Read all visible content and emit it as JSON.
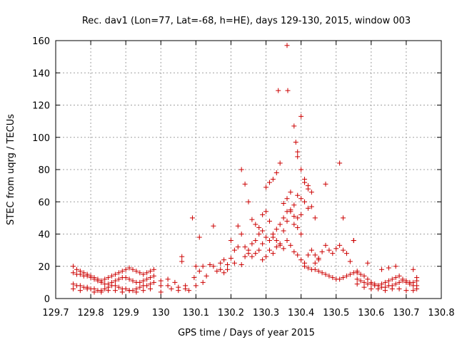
{
  "chart_data": {
    "type": "scatter",
    "title": "Rec. dav1 (Lon=77, Lat=-68, h=HE), days 129-130, 2015, window 003",
    "xlabel": "GPS time / Days of year 2015",
    "ylabel": "STEC from uqrg / TECUs",
    "xlim": [
      129.7,
      130.8
    ],
    "ylim": [
      0,
      160
    ],
    "xticks": [
      129.7,
      129.8,
      129.9,
      130.0,
      130.1,
      130.2,
      130.3,
      130.4,
      130.5,
      130.6,
      130.7,
      130.8
    ],
    "xtick_labels": [
      "129.7",
      "129.8",
      "129.9",
      "130",
      "130.1",
      "130.2",
      "130.3",
      "130.4",
      "130.5",
      "130.6",
      "130.7",
      "130.8"
    ],
    "yticks": [
      0,
      20,
      40,
      60,
      80,
      100,
      120,
      140,
      160
    ],
    "ytick_labels": [
      "0",
      "20",
      "40",
      "60",
      "80",
      "100",
      "120",
      "140",
      "160"
    ],
    "grid": true,
    "marker": "plus",
    "color": "#cc0000",
    "series": [
      {
        "x": [
          129.75,
          129.76,
          129.77,
          129.78,
          129.79,
          129.8,
          129.81,
          129.82,
          129.83,
          129.84,
          129.85,
          129.86,
          129.87,
          129.88,
          129.89,
          129.9,
          129.91,
          129.92,
          129.93,
          129.94,
          129.95,
          129.96,
          129.97,
          129.98,
          129.75,
          129.76,
          129.77,
          129.78,
          129.79,
          129.8,
          129.81,
          129.82,
          129.83,
          129.84,
          129.85,
          129.86,
          129.87,
          129.88,
          129.89,
          129.9,
          129.91,
          129.92,
          129.93,
          129.94,
          129.95,
          129.96,
          129.97,
          129.98,
          129.75,
          129.76,
          129.77,
          129.78,
          129.79,
          129.8,
          129.81,
          129.82,
          129.83,
          129.84,
          129.85,
          129.86,
          129.87,
          129.88,
          129.89,
          129.9,
          129.91,
          129.92,
          129.93,
          129.94,
          129.95,
          129.96,
          129.97,
          129.98,
          129.75,
          129.77,
          129.79,
          129.81,
          129.83,
          129.85,
          129.87,
          129.89,
          129.91,
          129.93,
          129.95,
          129.97,
          130.0,
          130.0,
          130.0,
          130.02,
          130.02,
          130.03,
          130.04,
          130.05,
          130.05,
          130.06,
          130.06,
          130.07,
          130.07,
          130.08,
          130.09,
          130.095,
          130.1,
          130.1,
          130.11,
          130.11,
          130.12,
          130.12,
          130.13,
          130.14,
          130.15,
          130.15,
          130.16,
          130.17,
          130.17,
          130.18,
          130.18,
          130.19,
          130.19,
          130.2,
          130.2,
          130.21,
          130.21,
          130.22,
          130.22,
          130.23,
          130.23,
          130.24,
          130.24,
          130.25,
          130.25,
          130.26,
          130.26,
          130.27,
          130.27,
          130.28,
          130.28,
          130.29,
          130.29,
          130.23,
          130.24,
          130.25,
          130.26,
          130.27,
          130.28,
          130.29,
          130.29,
          130.3,
          130.3,
          130.31,
          130.31,
          130.32,
          130.32,
          130.33,
          130.33,
          130.34,
          130.34,
          130.35,
          130.35,
          130.36,
          130.36,
          130.37,
          130.37,
          130.38,
          130.38,
          130.39,
          130.39,
          130.4,
          130.4,
          130.3,
          130.31,
          130.32,
          130.33,
          130.34,
          130.35,
          130.36,
          130.37,
          130.38,
          130.39,
          130.4,
          130.41,
          130.42,
          130.43,
          130.44,
          130.335,
          130.36,
          130.362,
          130.38,
          130.385,
          130.39,
          130.39,
          130.4,
          130.4,
          130.41,
          130.41,
          130.42,
          130.42,
          130.43,
          130.3,
          130.31,
          130.32,
          130.33,
          130.34,
          130.35,
          130.36,
          130.37,
          130.38,
          130.39,
          130.4,
          130.41,
          130.42,
          130.43,
          130.44,
          130.45,
          130.41,
          130.42,
          130.43,
          130.44,
          130.45,
          130.46,
          130.47,
          130.48,
          130.49,
          130.5,
          130.51,
          130.52,
          130.53,
          130.54,
          130.55,
          130.44,
          130.45,
          130.46,
          130.47,
          130.48,
          130.49,
          130.5,
          130.51,
          130.52,
          130.53,
          130.54,
          130.55,
          130.56,
          130.47,
          130.51,
          130.52,
          130.55,
          130.56,
          130.57,
          130.58,
          130.59,
          130.6,
          130.61,
          130.62,
          130.63,
          130.64,
          130.65,
          130.66,
          130.67,
          130.68,
          130.69,
          130.7,
          130.71,
          130.72,
          130.73,
          130.56,
          130.57,
          130.58,
          130.59,
          130.6,
          130.61,
          130.62,
          130.63,
          130.64,
          130.65,
          130.66,
          130.67,
          130.68,
          130.69,
          130.7,
          130.71,
          130.72,
          130.73,
          130.56,
          130.58,
          130.6,
          130.62,
          130.64,
          130.66,
          130.68,
          130.7,
          130.72,
          130.73,
          130.59,
          130.63,
          130.65,
          130.67,
          130.72,
          130.73
        ],
        "y": [
          20,
          18,
          17,
          16,
          15,
          14,
          13,
          12,
          11,
          12,
          13,
          14,
          15,
          16,
          17,
          18,
          19,
          18,
          17,
          16,
          15,
          16,
          17,
          18,
          16,
          15,
          15,
          14,
          14,
          13,
          12,
          11,
          10,
          9,
          9,
          10,
          11,
          12,
          13,
          13,
          12,
          11,
          10,
          10,
          11,
          12,
          13,
          14,
          9,
          8,
          8,
          7,
          7,
          6,
          6,
          5,
          5,
          6,
          7,
          8,
          8,
          7,
          6,
          6,
          5,
          5,
          6,
          7,
          8,
          8,
          9,
          10,
          6,
          5,
          6,
          4,
          4,
          5,
          5,
          4,
          5,
          4,
          5,
          6,
          11,
          8,
          4,
          12,
          8,
          6,
          10,
          7,
          5,
          26,
          23,
          8,
          6,
          5,
          50,
          13,
          20,
          8,
          38,
          17,
          20,
          10,
          14,
          21,
          45,
          20,
          17,
          22,
          18,
          24,
          16,
          21,
          18,
          36,
          25,
          30,
          22,
          45,
          32,
          40,
          21,
          32,
          26,
          28,
          30,
          34,
          26,
          36,
          28,
          40,
          30,
          34,
          24,
          80,
          71,
          60,
          49,
          46,
          44,
          52,
          42,
          54,
          38,
          48,
          36,
          40,
          38,
          43,
          36,
          46,
          33,
          50,
          42,
          54,
          48,
          66,
          55,
          51,
          46,
          50,
          44,
          52,
          40,
          69,
          72,
          74,
          78,
          84,
          59,
          62,
          54,
          58,
          64,
          62,
          60,
          56,
          57,
          50,
          129,
          157,
          129,
          107,
          97,
          91,
          88,
          113,
          80,
          72,
          74,
          70,
          68,
          66,
          26,
          30,
          28,
          32,
          34,
          31,
          36,
          33,
          29,
          27,
          24,
          22,
          27,
          30,
          27,
          24,
          20,
          19,
          18,
          22,
          25,
          29,
          33,
          30,
          28,
          31,
          33,
          30,
          28,
          23,
          36,
          18,
          17,
          16,
          15,
          14,
          13,
          12,
          12,
          13,
          14,
          15,
          16,
          17,
          71,
          84,
          50,
          36,
          12,
          11,
          10,
          9,
          9,
          8,
          8,
          9,
          10,
          11,
          12,
          13,
          14,
          12,
          11,
          10,
          10,
          11,
          16,
          15,
          14,
          12,
          10,
          9,
          8,
          7,
          7,
          8,
          8,
          9,
          10,
          11,
          10,
          9,
          8,
          8,
          9,
          7,
          6,
          6,
          5,
          6,
          6,
          5,
          5,
          6,
          22,
          18,
          19,
          20,
          18,
          13
        ]
      }
    ]
  }
}
